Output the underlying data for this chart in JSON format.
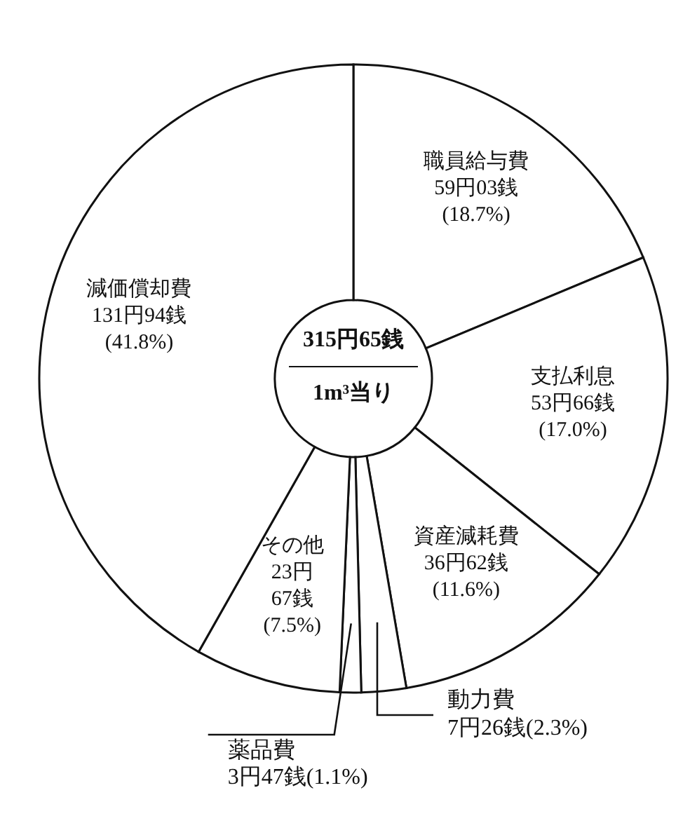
{
  "chart_data": {
    "type": "donut",
    "categories": [
      "職員給与費",
      "支払利息",
      "資産減耗費",
      "動力費",
      "薬品費",
      "その他",
      "減価償却費"
    ],
    "values": [
      18.7,
      17.0,
      11.6,
      2.3,
      1.1,
      7.5,
      41.8
    ],
    "colors": [
      "#ffffff",
      "#ffffff",
      "#ffffff",
      "#ffffff",
      "#ffffff",
      "#ffffff",
      "#ffffff"
    ],
    "value_labels": [
      "59円03銭 (18.7%)",
      "53円66銭 (17.0%)",
      "36円62銭 (11.6%)",
      "7円26銭(2.3%)",
      "3円47銭(1.1%)",
      "23円 67銭 (7.5%)",
      "131円94銭 (41.8%)"
    ],
    "annotations": [
      "315円65銭",
      "1m³当り"
    ]
  }
}
